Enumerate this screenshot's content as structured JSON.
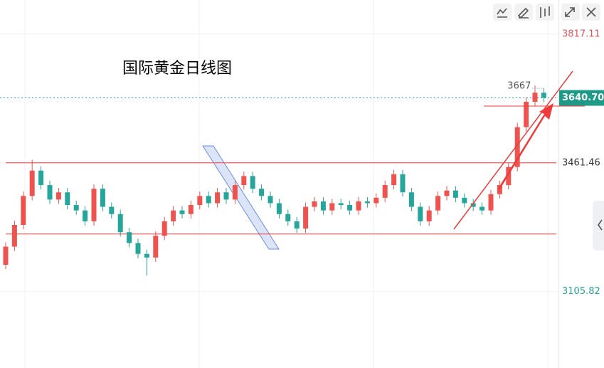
{
  "chart_data": {
    "type": "candlestick",
    "title": "国际黄金日线图",
    "open": [
      3180,
      3230,
      3290,
      3370,
      3440,
      3400,
      3360,
      3380,
      3345,
      3330,
      3300,
      3390,
      3340,
      3320,
      3270,
      3240,
      3210,
      3200,
      3260,
      3300,
      3330,
      3320,
      3345,
      3370,
      3350,
      3380,
      3360,
      3400,
      3425,
      3390,
      3370,
      3350,
      3320,
      3300,
      3280,
      3340,
      3355,
      3330,
      3350,
      3345,
      3330,
      3355,
      3350,
      3365,
      3400,
      3430,
      3380,
      3340,
      3300,
      3330,
      3370,
      3385,
      3365,
      3350,
      3340,
      3330,
      3375,
      3400,
      3450,
      3560,
      3630,
      3655
    ],
    "high": [
      3242,
      3302,
      3382,
      3470,
      3452,
      3412,
      3392,
      3392,
      3357,
      3342,
      3402,
      3402,
      3352,
      3332,
      3282,
      3252,
      3222,
      3272,
      3312,
      3342,
      3342,
      3357,
      3382,
      3382,
      3392,
      3392,
      3412,
      3437,
      3437,
      3402,
      3382,
      3362,
      3332,
      3312,
      3352,
      3367,
      3367,
      3362,
      3362,
      3357,
      3367,
      3367,
      3377,
      3412,
      3442,
      3442,
      3392,
      3352,
      3342,
      3382,
      3397,
      3397,
      3377,
      3362,
      3352,
      3387,
      3412,
      3462,
      3572,
      3642,
      3674.85,
      3667
    ],
    "low": [
      3168,
      3218,
      3278,
      3358,
      3388,
      3348,
      3348,
      3333,
      3318,
      3288,
      3288,
      3328,
      3308,
      3258,
      3228,
      3198,
      3150,
      3188,
      3248,
      3288,
      3308,
      3308,
      3333,
      3338,
      3338,
      3348,
      3348,
      3388,
      3378,
      3358,
      3338,
      3308,
      3288,
      3268,
      3268,
      3328,
      3318,
      3318,
      3333,
      3318,
      3318,
      3338,
      3338,
      3353,
      3388,
      3368,
      3328,
      3288,
      3288,
      3318,
      3358,
      3353,
      3338,
      3328,
      3318,
      3318,
      3363,
      3388,
      3438,
      3548,
      3618,
      3629
    ],
    "close": [
      3230,
      3290,
      3370,
      3440,
      3400,
      3360,
      3380,
      3345,
      3330,
      3300,
      3390,
      3340,
      3320,
      3270,
      3240,
      3210,
      3200,
      3260,
      3300,
      3330,
      3320,
      3345,
      3370,
      3350,
      3380,
      3360,
      3400,
      3425,
      3390,
      3370,
      3350,
      3320,
      3300,
      3280,
      3340,
      3355,
      3330,
      3350,
      3345,
      3330,
      3355,
      3350,
      3365,
      3400,
      3430,
      3380,
      3340,
      3300,
      3330,
      3370,
      3385,
      3365,
      3350,
      3340,
      3330,
      3375,
      3400,
      3450,
      3560,
      3630,
      3655,
      3641
    ],
    "up_color": "#ef5350",
    "down_color": "#26a69a",
    "ylim": [
      2895,
      3911
    ],
    "yticks": [
      3817.11,
      3461.46,
      3105.82
    ],
    "ytick_colors": [
      "#e0575a",
      "#333333",
      "#26a69a"
    ],
    "levels": [
      3461.46,
      3265
    ],
    "last_price": {
      "value": 3640.7,
      "label": "3640.70"
    },
    "grid": true
  }
}
